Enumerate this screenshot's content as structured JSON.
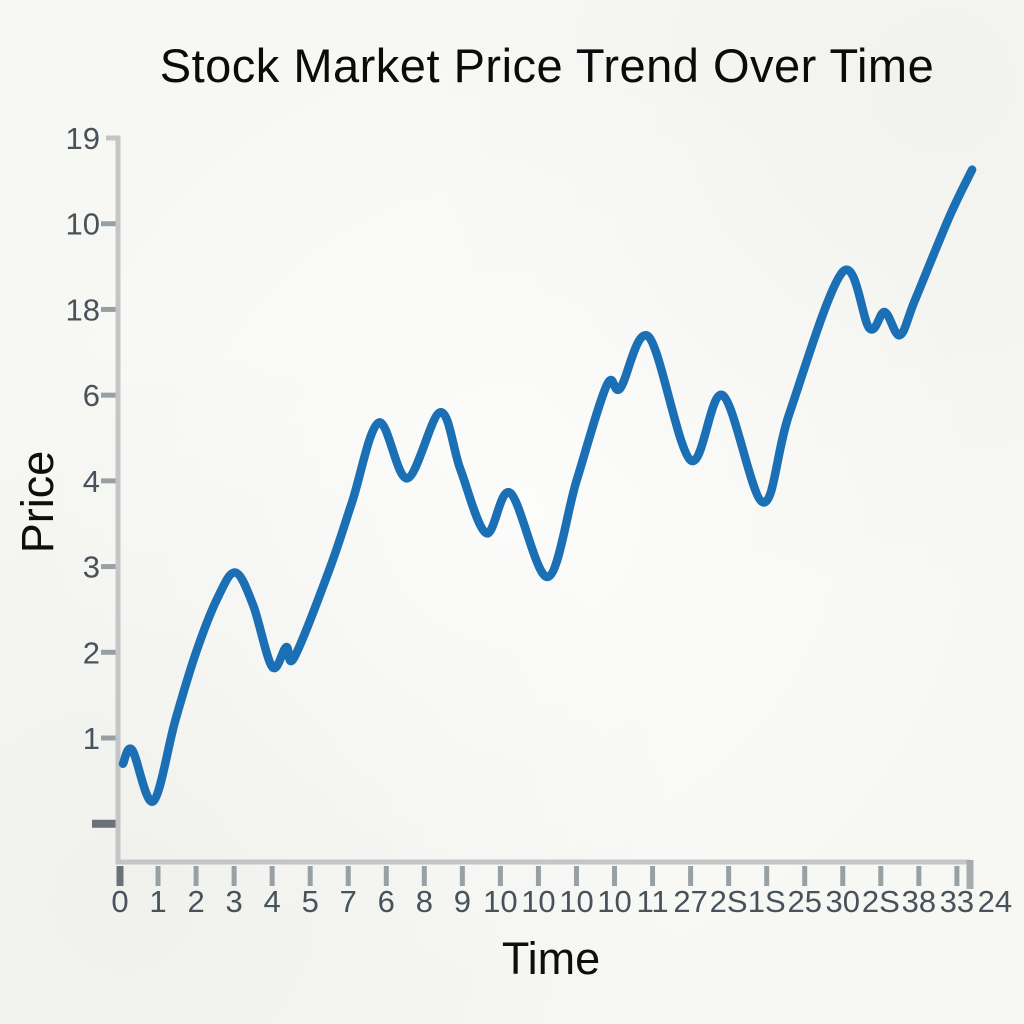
{
  "page": {
    "background": "#f7f7f4"
  },
  "chart_data": {
    "type": "line",
    "title": "Stock Market Price Trend Over Time",
    "xlabel": "Time",
    "ylabel": "Price",
    "legend": "none",
    "grid": "off",
    "line_color": "#1b6fb4",
    "axis_color": "#c3c5c6",
    "axis_cap_color": "#a6abae",
    "tick_color": "#99a0a4",
    "first_tick_color": "#6a7278",
    "tick_label_color": "#48525b",
    "title_color": "#0b0b0b",
    "x_tick_labels": [
      "0",
      "1",
      "2",
      "3",
      "4",
      "5",
      "7",
      "6",
      "8",
      "9",
      "10",
      "10",
      "10",
      "10",
      "11",
      "27",
      "2S",
      "1S",
      "25",
      "30",
      "2S",
      "38",
      "33",
      "24"
    ],
    "y_tick_labels_bottom_to_top": [
      "",
      "1",
      "2",
      "3",
      "4",
      "6",
      "18",
      "10",
      "19"
    ],
    "x_axis_units": "tick index 0-23, even spacing",
    "y_axis_units": "price units, 1 unit per tick from unlabeled bottom tick",
    "ylim": [
      0,
      8.3
    ],
    "series": [
      {
        "name": "price",
        "points": [
          [
            0.08,
            0.7
          ],
          [
            0.32,
            0.86
          ],
          [
            0.87,
            0.26
          ],
          [
            1.45,
            1.2
          ],
          [
            2.0,
            2.0
          ],
          [
            2.55,
            2.62
          ],
          [
            3.03,
            2.93
          ],
          [
            3.5,
            2.55
          ],
          [
            4.0,
            1.83
          ],
          [
            4.37,
            2.06
          ],
          [
            4.58,
            1.94
          ],
          [
            5.5,
            2.96
          ],
          [
            6.1,
            3.75
          ],
          [
            6.8,
            4.68
          ],
          [
            7.55,
            4.03
          ],
          [
            8.42,
            4.8
          ],
          [
            8.95,
            4.13
          ],
          [
            9.63,
            3.39
          ],
          [
            10.26,
            3.86
          ],
          [
            11.24,
            2.88
          ],
          [
            12.0,
            4.0
          ],
          [
            12.8,
            5.12
          ],
          [
            13.15,
            5.08
          ],
          [
            13.9,
            5.68
          ],
          [
            15.0,
            4.24
          ],
          [
            15.84,
            5.0
          ],
          [
            16.9,
            3.75
          ],
          [
            17.6,
            4.79
          ],
          [
            19.0,
            6.44
          ],
          [
            19.7,
            5.78
          ],
          [
            20.1,
            5.97
          ],
          [
            20.5,
            5.7
          ],
          [
            20.9,
            6.11
          ],
          [
            21.8,
            7.08
          ],
          [
            22.4,
            7.63
          ]
        ]
      }
    ]
  }
}
